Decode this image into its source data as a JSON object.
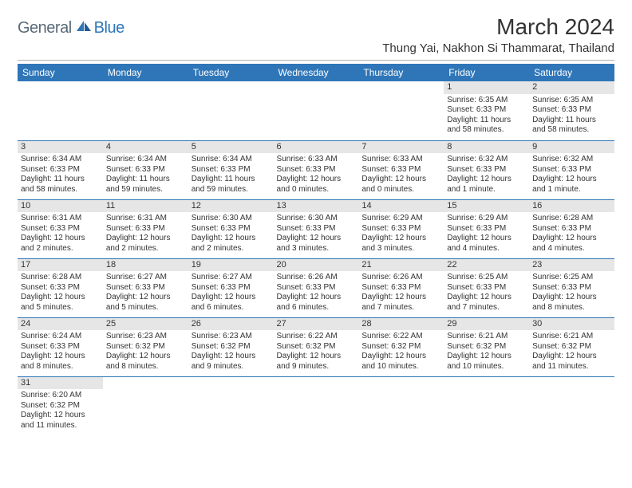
{
  "logo": {
    "text1": "General",
    "text2": "Blue"
  },
  "title": "March 2024",
  "location": "Thung Yai, Nakhon Si Thammarat, Thailand",
  "colors": {
    "header_bg": "#2f76b8",
    "header_text": "#ffffff",
    "daynum_bg": "#e6e6e6",
    "row_border": "#2f76b8",
    "body_text": "#333333",
    "logo_gray": "#5a6a78",
    "logo_blue": "#2f76b8",
    "page_bg": "#ffffff"
  },
  "typography": {
    "title_fontsize": 28,
    "location_fontsize": 15,
    "dayhead_fontsize": 12,
    "cell_fontsize": 10,
    "font_family": "Arial"
  },
  "dayHeaders": [
    "Sunday",
    "Monday",
    "Tuesday",
    "Wednesday",
    "Thursday",
    "Friday",
    "Saturday"
  ],
  "weeks": [
    [
      null,
      null,
      null,
      null,
      null,
      {
        "n": "1",
        "sr": "Sunrise: 6:35 AM",
        "ss": "Sunset: 6:33 PM",
        "dl1": "Daylight: 11 hours",
        "dl2": "and 58 minutes."
      },
      {
        "n": "2",
        "sr": "Sunrise: 6:35 AM",
        "ss": "Sunset: 6:33 PM",
        "dl1": "Daylight: 11 hours",
        "dl2": "and 58 minutes."
      }
    ],
    [
      {
        "n": "3",
        "sr": "Sunrise: 6:34 AM",
        "ss": "Sunset: 6:33 PM",
        "dl1": "Daylight: 11 hours",
        "dl2": "and 58 minutes."
      },
      {
        "n": "4",
        "sr": "Sunrise: 6:34 AM",
        "ss": "Sunset: 6:33 PM",
        "dl1": "Daylight: 11 hours",
        "dl2": "and 59 minutes."
      },
      {
        "n": "5",
        "sr": "Sunrise: 6:34 AM",
        "ss": "Sunset: 6:33 PM",
        "dl1": "Daylight: 11 hours",
        "dl2": "and 59 minutes."
      },
      {
        "n": "6",
        "sr": "Sunrise: 6:33 AM",
        "ss": "Sunset: 6:33 PM",
        "dl1": "Daylight: 12 hours",
        "dl2": "and 0 minutes."
      },
      {
        "n": "7",
        "sr": "Sunrise: 6:33 AM",
        "ss": "Sunset: 6:33 PM",
        "dl1": "Daylight: 12 hours",
        "dl2": "and 0 minutes."
      },
      {
        "n": "8",
        "sr": "Sunrise: 6:32 AM",
        "ss": "Sunset: 6:33 PM",
        "dl1": "Daylight: 12 hours",
        "dl2": "and 1 minute."
      },
      {
        "n": "9",
        "sr": "Sunrise: 6:32 AM",
        "ss": "Sunset: 6:33 PM",
        "dl1": "Daylight: 12 hours",
        "dl2": "and 1 minute."
      }
    ],
    [
      {
        "n": "10",
        "sr": "Sunrise: 6:31 AM",
        "ss": "Sunset: 6:33 PM",
        "dl1": "Daylight: 12 hours",
        "dl2": "and 2 minutes."
      },
      {
        "n": "11",
        "sr": "Sunrise: 6:31 AM",
        "ss": "Sunset: 6:33 PM",
        "dl1": "Daylight: 12 hours",
        "dl2": "and 2 minutes."
      },
      {
        "n": "12",
        "sr": "Sunrise: 6:30 AM",
        "ss": "Sunset: 6:33 PM",
        "dl1": "Daylight: 12 hours",
        "dl2": "and 2 minutes."
      },
      {
        "n": "13",
        "sr": "Sunrise: 6:30 AM",
        "ss": "Sunset: 6:33 PM",
        "dl1": "Daylight: 12 hours",
        "dl2": "and 3 minutes."
      },
      {
        "n": "14",
        "sr": "Sunrise: 6:29 AM",
        "ss": "Sunset: 6:33 PM",
        "dl1": "Daylight: 12 hours",
        "dl2": "and 3 minutes."
      },
      {
        "n": "15",
        "sr": "Sunrise: 6:29 AM",
        "ss": "Sunset: 6:33 PM",
        "dl1": "Daylight: 12 hours",
        "dl2": "and 4 minutes."
      },
      {
        "n": "16",
        "sr": "Sunrise: 6:28 AM",
        "ss": "Sunset: 6:33 PM",
        "dl1": "Daylight: 12 hours",
        "dl2": "and 4 minutes."
      }
    ],
    [
      {
        "n": "17",
        "sr": "Sunrise: 6:28 AM",
        "ss": "Sunset: 6:33 PM",
        "dl1": "Daylight: 12 hours",
        "dl2": "and 5 minutes."
      },
      {
        "n": "18",
        "sr": "Sunrise: 6:27 AM",
        "ss": "Sunset: 6:33 PM",
        "dl1": "Daylight: 12 hours",
        "dl2": "and 5 minutes."
      },
      {
        "n": "19",
        "sr": "Sunrise: 6:27 AM",
        "ss": "Sunset: 6:33 PM",
        "dl1": "Daylight: 12 hours",
        "dl2": "and 6 minutes."
      },
      {
        "n": "20",
        "sr": "Sunrise: 6:26 AM",
        "ss": "Sunset: 6:33 PM",
        "dl1": "Daylight: 12 hours",
        "dl2": "and 6 minutes."
      },
      {
        "n": "21",
        "sr": "Sunrise: 6:26 AM",
        "ss": "Sunset: 6:33 PM",
        "dl1": "Daylight: 12 hours",
        "dl2": "and 7 minutes."
      },
      {
        "n": "22",
        "sr": "Sunrise: 6:25 AM",
        "ss": "Sunset: 6:33 PM",
        "dl1": "Daylight: 12 hours",
        "dl2": "and 7 minutes."
      },
      {
        "n": "23",
        "sr": "Sunrise: 6:25 AM",
        "ss": "Sunset: 6:33 PM",
        "dl1": "Daylight: 12 hours",
        "dl2": "and 8 minutes."
      }
    ],
    [
      {
        "n": "24",
        "sr": "Sunrise: 6:24 AM",
        "ss": "Sunset: 6:33 PM",
        "dl1": "Daylight: 12 hours",
        "dl2": "and 8 minutes."
      },
      {
        "n": "25",
        "sr": "Sunrise: 6:23 AM",
        "ss": "Sunset: 6:32 PM",
        "dl1": "Daylight: 12 hours",
        "dl2": "and 8 minutes."
      },
      {
        "n": "26",
        "sr": "Sunrise: 6:23 AM",
        "ss": "Sunset: 6:32 PM",
        "dl1": "Daylight: 12 hours",
        "dl2": "and 9 minutes."
      },
      {
        "n": "27",
        "sr": "Sunrise: 6:22 AM",
        "ss": "Sunset: 6:32 PM",
        "dl1": "Daylight: 12 hours",
        "dl2": "and 9 minutes."
      },
      {
        "n": "28",
        "sr": "Sunrise: 6:22 AM",
        "ss": "Sunset: 6:32 PM",
        "dl1": "Daylight: 12 hours",
        "dl2": "and 10 minutes."
      },
      {
        "n": "29",
        "sr": "Sunrise: 6:21 AM",
        "ss": "Sunset: 6:32 PM",
        "dl1": "Daylight: 12 hours",
        "dl2": "and 10 minutes."
      },
      {
        "n": "30",
        "sr": "Sunrise: 6:21 AM",
        "ss": "Sunset: 6:32 PM",
        "dl1": "Daylight: 12 hours",
        "dl2": "and 11 minutes."
      }
    ],
    [
      {
        "n": "31",
        "sr": "Sunrise: 6:20 AM",
        "ss": "Sunset: 6:32 PM",
        "dl1": "Daylight: 12 hours",
        "dl2": "and 11 minutes."
      },
      null,
      null,
      null,
      null,
      null,
      null
    ]
  ]
}
